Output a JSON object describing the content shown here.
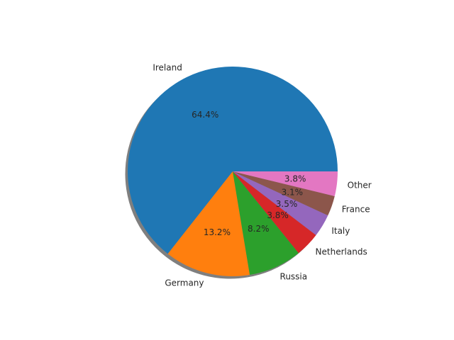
{
  "chart_data": {
    "type": "pie",
    "title": "",
    "labels": [
      "Ireland",
      "Germany",
      "Russia",
      "Netherlands",
      "Italy",
      "France",
      "Other"
    ],
    "values": [
      64.4,
      13.2,
      8.2,
      3.8,
      3.5,
      3.1,
      3.8
    ],
    "pct_labels": [
      "64.4%",
      "13.2%",
      "8.2%",
      "3.8%",
      "3.5%",
      "3.1%",
      "3.8%"
    ],
    "colors": [
      "#1f77b4",
      "#ff7f0e",
      "#2ca02c",
      "#d62728",
      "#9467bd",
      "#8c564b",
      "#e377c2"
    ],
    "start_angle_deg": 0,
    "direction": "counterclockwise",
    "shadow": true,
    "legend": "none"
  }
}
